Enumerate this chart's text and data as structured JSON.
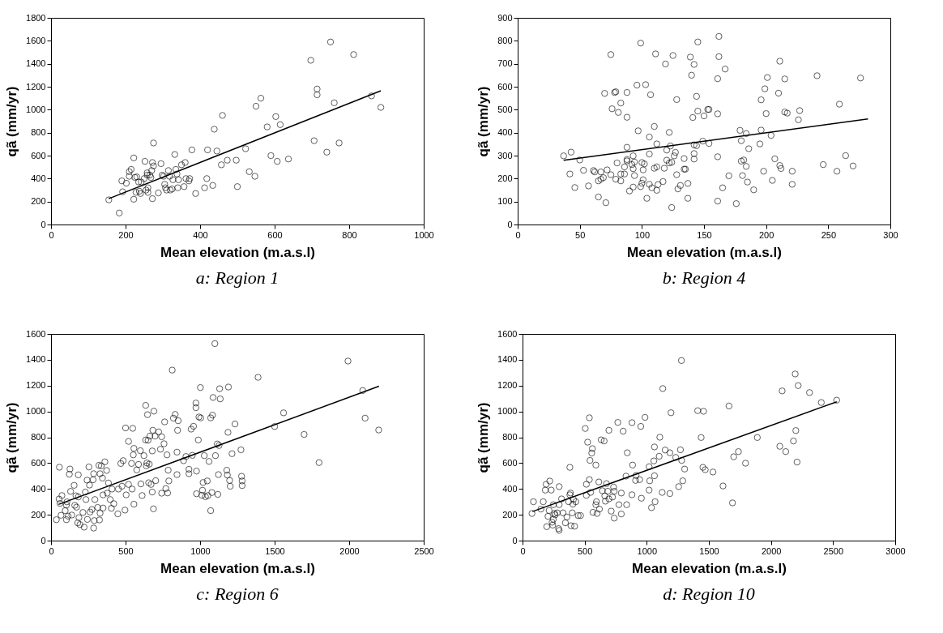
{
  "chart_data": [
    {
      "type": "scatter",
      "title": "a: Region 1",
      "xlabel": "Mean elevation (m.a.s.l)",
      "ylabel": "qã (mm/yr)",
      "xlim": [
        0,
        1000
      ],
      "ylim": [
        0,
        1800
      ],
      "xticks": [
        0,
        200,
        400,
        600,
        800,
        1000
      ],
      "yticks": [
        0,
        200,
        400,
        600,
        800,
        1000,
        1200,
        1400,
        1600,
        1800
      ],
      "grid": false,
      "series": [
        {
          "type": "scatter",
          "marker": "circle",
          "color": "#000000",
          "x": [
            155,
            183,
            190,
            192,
            202,
            210,
            210,
            215,
            222,
            222,
            225,
            228,
            230,
            235,
            237,
            240,
            242,
            250,
            252,
            255,
            258,
            258,
            260,
            260,
            265,
            268,
            270,
            272,
            272,
            275,
            275,
            288,
            295,
            298,
            302,
            305,
            307,
            310,
            315,
            318,
            320,
            325,
            327,
            332,
            335,
            338,
            340,
            342,
            350,
            357,
            360,
            362,
            370,
            372,
            378,
            388,
            412,
            418,
            420,
            434,
            438,
            445,
            457,
            460,
            473,
            497,
            500,
            522,
            532,
            547,
            550,
            563,
            580,
            590,
            603,
            607,
            615,
            637,
            697,
            706,
            714,
            714,
            740,
            750,
            760,
            773,
            812,
            860,
            885
          ],
          "values": [
            215,
            100,
            380,
            285,
            360,
            460,
            420,
            480,
            580,
            220,
            410,
            280,
            415,
            370,
            290,
            270,
            370,
            400,
            550,
            300,
            450,
            430,
            320,
            280,
            430,
            410,
            470,
            540,
            225,
            510,
            710,
            275,
            530,
            430,
            420,
            350,
            320,
            300,
            470,
            420,
            300,
            310,
            390,
            610,
            480,
            440,
            320,
            390,
            520,
            330,
            540,
            400,
            380,
            400,
            650,
            270,
            320,
            400,
            650,
            340,
            830,
            640,
            520,
            950,
            560,
            560,
            330,
            660,
            460,
            420,
            1030,
            1100,
            850,
            600,
            940,
            550,
            870,
            570,
            1430,
            730,
            1180,
            1130,
            630,
            1590,
            1060,
            710,
            1480,
            1120,
            1020
          ]
        },
        {
          "type": "line",
          "color": "#000000",
          "x": [
            155,
            885
          ],
          "values": [
            225,
            1165
          ]
        }
      ]
    },
    {
      "type": "scatter",
      "title": "b: Region 4",
      "xlabel": "Mean elevation (m.a.s.l)",
      "ylabel": "qã (mm/yr)",
      "xlim": [
        0,
        300
      ],
      "ylim": [
        0,
        900
      ],
      "xticks": [
        0,
        50,
        100,
        150,
        200,
        250,
        300
      ],
      "yticks": [
        0,
        100,
        200,
        300,
        400,
        500,
        600,
        700,
        800,
        900
      ],
      "grid": false,
      "series": [
        {
          "type": "scatter",
          "marker": "circle",
          "color": "#000000",
          "x": [
            37,
            43,
            42,
            46,
            50,
            53,
            57,
            61,
            62,
            65,
            65,
            67,
            67,
            69,
            70,
            71,
            72,
            75,
            75,
            76,
            78,
            79,
            79,
            80,
            81,
            83,
            83,
            83,
            86,
            86,
            88,
            88,
            88,
            88,
            88,
            90,
            92,
            93,
            93,
            93,
            94,
            94,
            96,
            97,
            99,
            99,
            100,
            100,
            101,
            101,
            102,
            103,
            104,
            106,
            106,
            106,
            107,
            108,
            110,
            110,
            111,
            112,
            112,
            112,
            113,
            117,
            118,
            119,
            120,
            120,
            122,
            122,
            123,
            124,
            124,
            125,
            126,
            127,
            128,
            128,
            129,
            131,
            134,
            134,
            135,
            137,
            137,
            139,
            140,
            141,
            142,
            142,
            142,
            142,
            144,
            144,
            145,
            145,
            149,
            150,
            153,
            154,
            154,
            161,
            161,
            161,
            161,
            162,
            162,
            165,
            167,
            170,
            176,
            179,
            180,
            180,
            182,
            181,
            184,
            184,
            185,
            186,
            190,
            195,
            196,
            196,
            198,
            199,
            200,
            201,
            204,
            205,
            207,
            210,
            211,
            211,
            212,
            215,
            215,
            217,
            221,
            221,
            226,
            227,
            241,
            246,
            257,
            259,
            264,
            270,
            276
          ],
          "values": [
            299,
            315,
            220,
            161,
            281,
            236,
            168,
            235,
            229,
            120,
            190,
            197,
            229,
            204,
            571,
            95,
            238,
            740,
            217,
            504,
            575,
            578,
            197,
            268,
            488,
            220,
            529,
            190,
            220,
            251,
            575,
            283,
            277,
            467,
            336,
            146,
            261,
            299,
            163,
            243,
            213,
            272,
            607,
            408,
            790,
            165,
            180,
            270,
            238,
            195,
            264,
            609,
            114,
            381,
            307,
            175,
            565,
            160,
            427,
            245,
            743,
            149,
            351,
            251,
            174,
            187,
            245,
            699,
            280,
            324,
            401,
            268,
            342,
            74,
            271,
            736,
            299,
            314,
            544,
            217,
            155,
            170,
            287,
            241,
            241,
            114,
            179,
            729,
            650,
            466,
            697,
            347,
            285,
            309,
            343,
            558,
            795,
            494,
            363,
            473,
            501,
            501,
            353,
            295,
            102,
            482,
            635,
            819,
            731,
            160,
            677,
            212,
            91,
            410,
            365,
            276,
            281,
            213,
            396,
            253,
            185,
            330,
            151,
            351,
            411,
            543,
            232,
            591,
            483,
            640,
            388,
            192,
            286,
            572,
            711,
            257,
            244,
            634,
            490,
            485,
            232,
            175,
            456,
            496,
            648,
            261,
            232,
            524,
            300,
            255,
            638
          ]
        },
        {
          "type": "line",
          "color": "#000000",
          "x": [
            37,
            282
          ],
          "values": [
            280,
            460
          ]
        }
      ]
    },
    {
      "type": "scatter",
      "title": "c: Region 6",
      "xlabel": "Mean elevation (m.a.s.l)",
      "ylabel": "qã (mm/yr)",
      "xlim": [
        0,
        2500
      ],
      "ylim": [
        0,
        1600
      ],
      "xticks": [
        0,
        500,
        1000,
        1500,
        2000,
        2500
      ],
      "yticks": [
        0,
        200,
        400,
        600,
        800,
        1000,
        1200,
        1400,
        1600
      ],
      "grid": false,
      "series": [
        {
          "type": "scatter",
          "marker": "circle",
          "color": "#000000",
          "x": [
            36,
            54,
            56,
            60,
            67,
            73,
            95,
            103,
            103,
            107,
            115,
            123,
            127,
            131,
            139,
            155,
            159,
            167,
            171,
            179,
            183,
            183,
            187,
            194,
            214,
            222,
            230,
            234,
            242,
            244,
            254,
            258,
            262,
            274,
            282,
            286,
            290,
            286,
            294,
            313,
            321,
            325,
            329,
            329,
            337,
            345,
            349,
            349,
            361,
            373,
            377,
            385,
            397,
            405,
            409,
            421,
            448,
            452,
            468,
            476,
            484,
            496,
            500,
            504,
            520,
            520,
            540,
            544,
            548,
            552,
            556,
            556,
            575,
            587,
            599,
            603,
            611,
            623,
            635,
            635,
            639,
            643,
            647,
            651,
            655,
            659,
            663,
            671,
            679,
            679,
            683,
            687,
            690,
            698,
            702,
            722,
            734,
            742,
            742,
            758,
            762,
            770,
            778,
            782,
            786,
            790,
            813,
            821,
            833,
            845,
            845,
            849,
            853,
            889,
            905,
            925,
            925,
            948,
            940,
            956,
            972,
            972,
            976,
            976,
            988,
            992,
            1002,
            1004,
            1012,
            1016,
            1020,
            1028,
            1036,
            1048,
            1052,
            1060,
            1071,
            1071,
            1079,
            1083,
            1087,
            1099,
            1103,
            1115,
            1119,
            1123,
            1127,
            1131,
            1135,
            1179,
            1183,
            1187,
            1190,
            1198,
            1202,
            1214,
            1234,
            1274,
            1278,
            1282,
            1282,
            1389,
            1500,
            1560,
            1698,
            1798,
            1992,
            2091,
            2107,
            2198
          ],
          "values": [
            162,
            322,
            568,
            288,
            196,
            349,
            232,
            275,
            162,
            300,
            189,
            514,
            554,
            381,
            198,
            428,
            273,
            347,
            259,
            137,
            509,
            338,
            178,
            124,
            218,
            104,
            376,
            318,
            468,
            164,
            570,
            430,
            221,
            241,
            471,
            518,
            155,
            97,
            318,
            257,
            583,
            160,
            518,
            212,
            579,
            484,
            354,
            252,
            610,
            543,
            367,
            446,
            318,
            250,
            399,
            286,
            207,
            399,
            597,
            421,
            619,
            236,
            872,
            354,
            768,
            435,
            597,
            399,
            869,
            664,
            282,
            714,
            547,
            590,
            696,
            439,
            349,
            658,
            1047,
            779,
            579,
            601,
            975,
            777,
            448,
            592,
            809,
            435,
            376,
            694,
            854,
            246,
            1002,
            809,
            464,
            842,
            707,
            804,
            367,
            750,
            919,
            403,
            664,
            369,
            545,
            462,
            1320,
            948,
            977,
            685,
            511,
            854,
            928,
            619,
            651,
            552,
            518,
            660,
            863,
            885,
            1029,
            1065,
            538,
            363,
            779,
            957,
            1185,
            950,
            351,
            390,
            450,
            658,
            340,
            462,
            349,
            613,
            232,
            950,
            372,
            971,
            1108,
            1525,
            658,
            748,
            358,
            511,
            736,
            1176,
            1097,
            545,
            507,
            838,
            1189,
            466,
            421,
            673,
            903,
            703,
            498,
            462,
            426,
            1264,
            883,
            989,
            822,
            604,
            1390,
            1162,
            948,
            856
          ]
        },
        {
          "type": "line",
          "color": "#000000",
          "x": [
            50,
            2200
          ],
          "values": [
            280,
            1195
          ]
        }
      ]
    },
    {
      "type": "scatter",
      "title": "d: Region 10",
      "xlabel": "Mean elevation (m.a.s.l)",
      "ylabel": "qã (mm/yr)",
      "xlim": [
        0,
        3000
      ],
      "ylim": [
        0,
        1600
      ],
      "xticks": [
        0,
        500,
        1000,
        1500,
        2000,
        2500,
        3000
      ],
      "yticks": [
        0,
        200,
        400,
        600,
        800,
        1000,
        1200,
        1400,
        1600
      ],
      "grid": false,
      "series": [
        {
          "type": "scatter",
          "marker": "circle",
          "color": "#000000",
          "x": [
            76,
            88,
            148,
            167,
            183,
            190,
            195,
            205,
            214,
            219,
            231,
            238,
            243,
            248,
            248,
            257,
            262,
            279,
            295,
            295,
            290,
            295,
            314,
            326,
            345,
            357,
            371,
            381,
            386,
            381,
            390,
            400,
            405,
            410,
            419,
            429,
            448,
            467,
            505,
            514,
            514,
            524,
            538,
            538,
            543,
            548,
            557,
            562,
            567,
            590,
            590,
            595,
            600,
            614,
            619,
            633,
            643,
            657,
            662,
            667,
            676,
            686,
            695,
            695,
            724,
            733,
            738,
            738,
            714,
            767,
            776,
            795,
            795,
            810,
            833,
            838,
            843,
            881,
            886,
            881,
            914,
            910,
            943,
            952,
            957,
            986,
            1019,
            1024,
            1019,
            1038,
            1057,
            1062,
            1062,
            1067,
            1100,
            1105,
            1124,
            1129,
            1148,
            1186,
            1186,
            1195,
            1233,
            1257,
            1271,
            1279,
            1281,
            1290,
            1305,
            1410,
            1438,
            1452,
            1457,
            1471,
            1533,
            1614,
            1662,
            1690,
            1700,
            1738,
            1795,
            1890,
            2071,
            2090,
            2119,
            2181,
            2195,
            2200,
            2210,
            2219,
            2310,
            2405,
            2529
          ],
          "values": [
            210,
            301,
            244,
            301,
            391,
            436,
            108,
            188,
            233,
            461,
            391,
            142,
            120,
            165,
            278,
            210,
            199,
            215,
            418,
            278,
            93,
            79,
            323,
            215,
            138,
            183,
            301,
            355,
            368,
            567,
            115,
            215,
            282,
            319,
            111,
            301,
            194,
            194,
            868,
            350,
            436,
            762,
            951,
            472,
            621,
            373,
            678,
            712,
            219,
            585,
            278,
            301,
            210,
            454,
            244,
            780,
            386,
            771,
            346,
            305,
            441,
            382,
            323,
            854,
            337,
            414,
            382,
            174,
            228,
            915,
            278,
            368,
            206,
            847,
            499,
            278,
            680,
            913,
            585,
            355,
            504,
            466,
            472,
            884,
            328,
            954,
            391,
            463,
            572,
            255,
            617,
            725,
            502,
            301,
            653,
            800,
            373,
            1177,
            701,
            680,
            364,
            990,
            644,
            418,
            703,
            1394,
            621,
            463,
            554,
            1006,
            798,
            567,
            1001,
            549,
            531,
            423,
            1042,
            292,
            649,
            689,
            599,
            798,
            730,
            1159,
            689,
            771,
            1290,
            852,
            608,
            1200,
            1146,
            1069,
            1087
          ]
        },
        {
          "type": "line",
          "color": "#000000",
          "x": [
            80,
            2530
          ],
          "values": [
            225,
            1075
          ]
        }
      ]
    }
  ]
}
